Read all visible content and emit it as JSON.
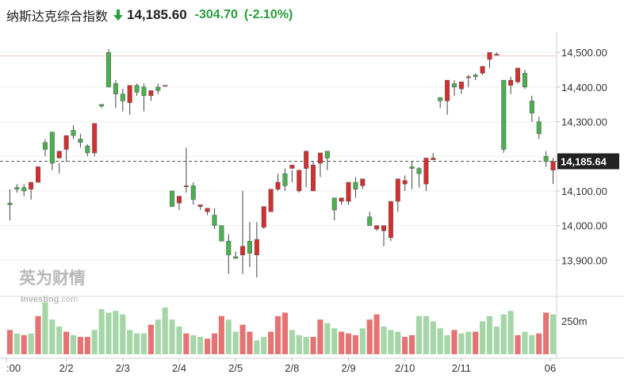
{
  "header": {
    "title": "纳斯达克综合指数",
    "price": "14,185.60",
    "change": "-304.70",
    "change_pct": "(-2.10%)",
    "down_color": "#2a9d3e"
  },
  "watermark": {
    "line1": "英为财情",
    "line2": "Investing",
    "line2_suffix": ".com"
  },
  "colors": {
    "up": "#d32f2f",
    "down": "#4caf50",
    "vol_up": "#e57373",
    "vol_down": "#a5d6a7"
  },
  "chart_data": {
    "type": "candlestick",
    "y_ticks": [
      "14,500.00",
      "14,400.00",
      "14,300.00",
      "14,200.00",
      "14,100.00",
      "14,000.00",
      "13,900.00"
    ],
    "y_tick_values": [
      14500,
      14400,
      14300,
      14200,
      14100,
      14000,
      13900
    ],
    "ylim": [
      13800,
      14560
    ],
    "x_tick_labels": [
      ":00",
      "2/2",
      "2/3",
      "2/4",
      "2/5",
      "2/8",
      "2/9",
      "2/10",
      "2/11",
      "06"
    ],
    "x_tick_index": [
      0,
      8,
      16,
      24,
      32,
      40,
      48,
      56,
      64,
      69
    ],
    "last_price": 14185.64,
    "last_price_label": "14,185.64",
    "ref_line": 14490,
    "volume_tick": "250m",
    "volume_tick_value": 250,
    "candles": [
      [
        14065,
        14105,
        14060,
        14015
      ],
      [
        14110,
        14120,
        14105,
        14095
      ],
      [
        14110,
        14120,
        14100,
        14085
      ],
      [
        14105,
        14120,
        14125,
        14075
      ],
      [
        14125,
        14145,
        14170,
        14125
      ],
      [
        14240,
        14250,
        14220,
        14200
      ],
      [
        14270,
        14190,
        14180,
        14160
      ],
      [
        14195,
        14180,
        14215,
        14150
      ],
      [
        14220,
        14255,
        14260,
        14185
      ],
      [
        14275,
        14290,
        14260,
        14250
      ],
      [
        14250,
        14265,
        14240,
        14225
      ],
      [
        14230,
        14235,
        14210,
        14200
      ],
      [
        14210,
        14230,
        14295,
        14200
      ],
      [
        14350,
        14350,
        14345,
        14340
      ],
      [
        14500,
        14510,
        14400,
        14400
      ],
      [
        14410,
        14420,
        14380,
        14340
      ],
      [
        14380,
        14395,
        14360,
        14330
      ],
      [
        14355,
        14365,
        14405,
        14320
      ],
      [
        14405,
        14410,
        14385,
        14375
      ],
      [
        14400,
        14410,
        14375,
        14330
      ],
      [
        14375,
        14380,
        14390,
        14360
      ],
      [
        14400,
        14410,
        14390,
        14380
      ],
      [
        14405,
        14405,
        14405,
        14405
      ],
      [
        14100,
        14085,
        14055,
        14085
      ],
      [
        14065,
        14065,
        14085,
        14045
      ],
      [
        14115,
        14225,
        14115,
        14095
      ],
      [
        14115,
        14125,
        14075,
        14060
      ],
      [
        14055,
        14060,
        14060,
        14045
      ],
      [
        14040,
        14045,
        14050,
        14030
      ],
      [
        14030,
        14050,
        14000,
        13990
      ],
      [
        14000,
        14000,
        13955,
        13955
      ],
      [
        13955,
        13975,
        13915,
        13860
      ],
      [
        13910,
        13925,
        13905,
        13905
      ],
      [
        13915,
        14100,
        13940,
        13860
      ],
      [
        13955,
        14010,
        13920,
        13880
      ],
      [
        13915,
        14010,
        13960,
        13850
      ],
      [
        13995,
        14025,
        14055,
        13990
      ],
      [
        14040,
        14045,
        14105,
        14040
      ],
      [
        14105,
        14150,
        14125,
        14100
      ],
      [
        14150,
        14165,
        14115,
        14100
      ],
      [
        14165,
        14160,
        14175,
        14125
      ],
      [
        14100,
        14110,
        14160,
        14095
      ],
      [
        14165,
        14190,
        14215,
        14110
      ],
      [
        14100,
        14185,
        14175,
        14110
      ],
      [
        14180,
        14195,
        14210,
        14140
      ],
      [
        14215,
        14205,
        14195,
        14160
      ],
      [
        14080,
        14070,
        14045,
        14015
      ],
      [
        14070,
        14080,
        14080,
        14060
      ],
      [
        14070,
        14070,
        14125,
        14060
      ],
      [
        14125,
        14140,
        14105,
        14080
      ],
      [
        14115,
        14115,
        14135,
        14105
      ],
      [
        14025,
        14040,
        14000,
        14010
      ],
      [
        13990,
        13995,
        14000,
        13985
      ],
      [
        13985,
        13990,
        14000,
        13940
      ],
      [
        13965,
        13975,
        14070,
        13955
      ],
      [
        14070,
        14075,
        14135,
        14040
      ],
      [
        14120,
        14145,
        14130,
        14100
      ],
      [
        14170,
        14185,
        14165,
        14105
      ],
      [
        14165,
        14170,
        14150,
        14110
      ],
      [
        14120,
        14130,
        14195,
        14100
      ],
      [
        14190,
        14210,
        14195,
        14190
      ],
      [
        14370,
        14370,
        14360,
        14340
      ],
      [
        14360,
        14410,
        14420,
        14320
      ],
      [
        14410,
        14420,
        14400,
        14375
      ],
      [
        14395,
        14400,
        14415,
        14380
      ],
      [
        14430,
        14435,
        14430,
        14400
      ],
      [
        14435,
        14440,
        14430,
        14420
      ],
      [
        14440,
        14445,
        14460,
        14435
      ],
      [
        14480,
        14495,
        14500,
        14455
      ],
      [
        14495,
        14500,
        14495,
        14495
      ],
      [
        14420,
        14410,
        14220,
        14210
      ],
      [
        14405,
        14430,
        14420,
        14380
      ],
      [
        14415,
        14430,
        14455,
        14410
      ],
      [
        14440,
        14450,
        14400,
        14395
      ],
      [
        14360,
        14375,
        14325,
        14300
      ],
      [
        14300,
        14315,
        14265,
        14250
      ],
      [
        14200,
        14215,
        14185,
        14170
      ],
      [
        14160,
        14195,
        14185,
        14120
      ]
    ],
    "volumes": [
      [
        true,
        14
      ],
      [
        false,
        12
      ],
      [
        true,
        11
      ],
      [
        false,
        12
      ],
      [
        true,
        22
      ],
      [
        false,
        30
      ],
      [
        false,
        20
      ],
      [
        false,
        16
      ],
      [
        true,
        13
      ],
      [
        false,
        11
      ],
      [
        true,
        10
      ],
      [
        true,
        10
      ],
      [
        false,
        14
      ],
      [
        false,
        26
      ],
      [
        false,
        24
      ],
      [
        false,
        25
      ],
      [
        false,
        23
      ],
      [
        false,
        14
      ],
      [
        false,
        12
      ],
      [
        false,
        12
      ],
      [
        true,
        17
      ],
      [
        false,
        20
      ],
      [
        false,
        27
      ],
      [
        false,
        20
      ],
      [
        false,
        16
      ],
      [
        true,
        12
      ],
      [
        false,
        11
      ],
      [
        false,
        10
      ],
      [
        true,
        9
      ],
      [
        true,
        12
      ],
      [
        true,
        22
      ],
      [
        false,
        20
      ],
      [
        false,
        13
      ],
      [
        true,
        17
      ],
      [
        true,
        13
      ],
      [
        false,
        8
      ],
      [
        false,
        10
      ],
      [
        true,
        13
      ],
      [
        true,
        22
      ],
      [
        true,
        24
      ],
      [
        false,
        14
      ],
      [
        false,
        11
      ],
      [
        false,
        10
      ],
      [
        true,
        10
      ],
      [
        true,
        20
      ],
      [
        false,
        18
      ],
      [
        false,
        15
      ],
      [
        true,
        13
      ],
      [
        true,
        12
      ],
      [
        true,
        11
      ],
      [
        false,
        15
      ],
      [
        true,
        20
      ],
      [
        true,
        23
      ],
      [
        false,
        16
      ],
      [
        false,
        14
      ],
      [
        false,
        13
      ],
      [
        true,
        10
      ],
      [
        true,
        11
      ],
      [
        false,
        22
      ],
      [
        false,
        22
      ],
      [
        false,
        19
      ],
      [
        false,
        15
      ],
      [
        false,
        11
      ],
      [
        true,
        14
      ],
      [
        false,
        12
      ],
      [
        false,
        13
      ],
      [
        true,
        13
      ],
      [
        false,
        19
      ],
      [
        false,
        22
      ],
      [
        false,
        16
      ],
      [
        false,
        23
      ],
      [
        false,
        25
      ],
      [
        true,
        11
      ],
      [
        false,
        13
      ],
      [
        false,
        11
      ],
      [
        true,
        12
      ],
      [
        true,
        24
      ],
      [
        false,
        23
      ]
    ]
  }
}
